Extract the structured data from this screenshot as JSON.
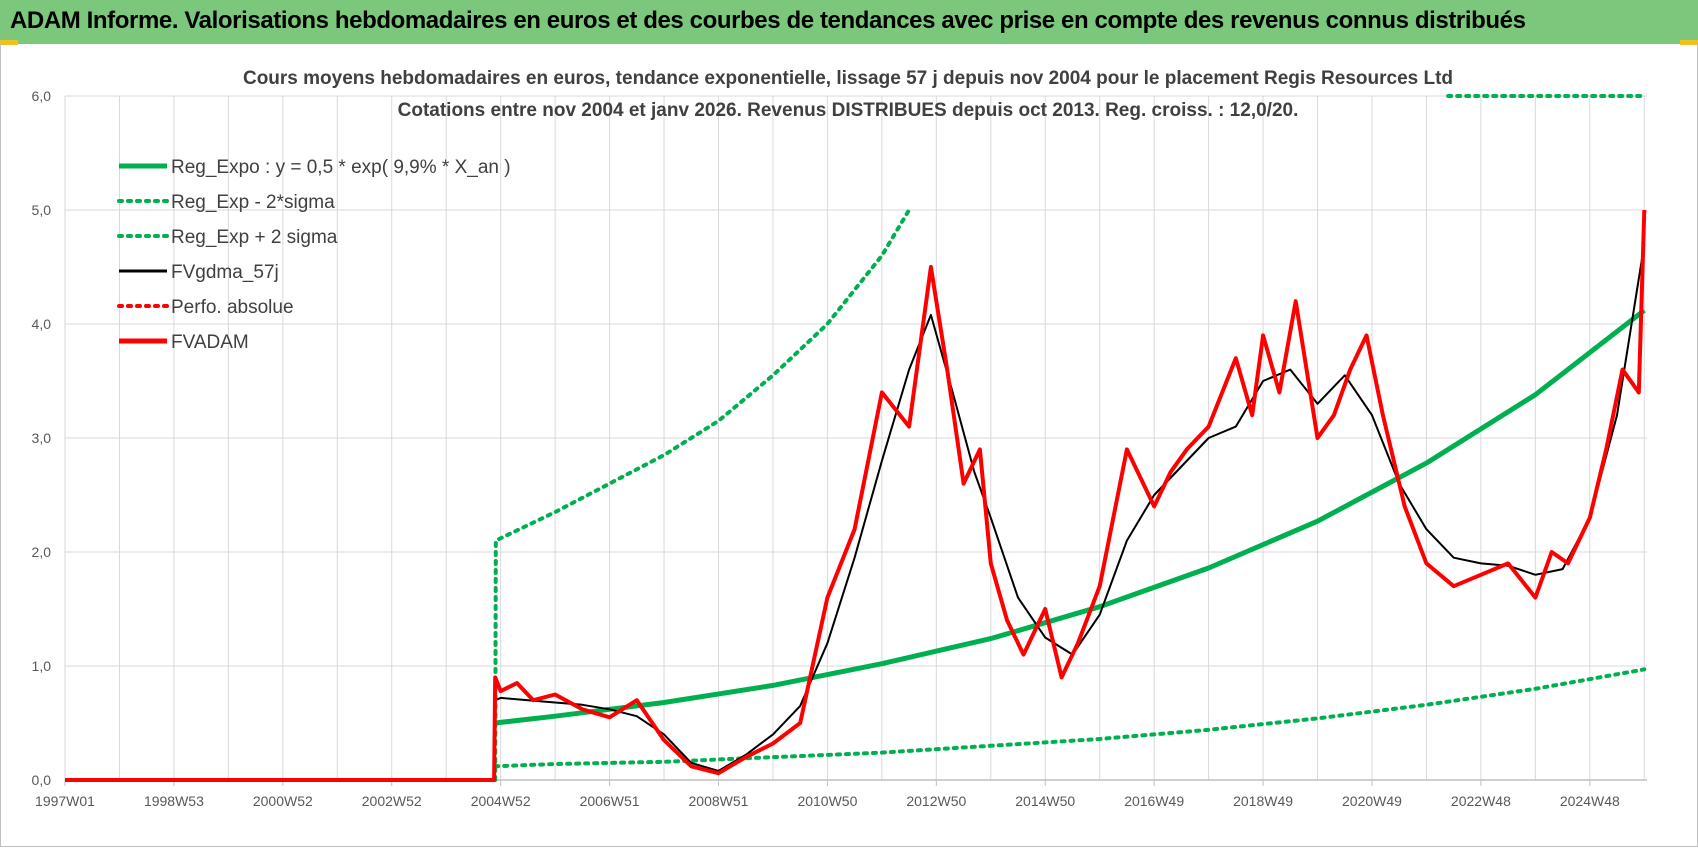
{
  "banner": {
    "title": "ADAM Informe. Valorisations hebdomadaires en euros et des courbes de tendances avec prise en compte des revenus connus distribués",
    "color": "#7bc77b"
  },
  "chart_data": {
    "type": "line",
    "title_line1": "Cours moyens hebdomadaires en euros, tendance exponentielle, lissage 57 j depuis nov 2004  pour le  placement Regis Resources Ltd",
    "title_line2": "Cotations entre nov 2004 et janv 2026. Revenus DISTRIBUES depuis oct 2013.  Reg. croiss. : 12,0/20.",
    "xlabel": "",
    "ylabel": "",
    "x_range": [
      1997.0,
      2026.05
    ],
    "ylim": [
      0,
      6
    ],
    "y_ticks": [
      "0,0",
      "1,0",
      "2,0",
      "3,0",
      "4,0",
      "5,0",
      "6,0"
    ],
    "x_ticks": [
      {
        "label": "1997W01",
        "x": 1997.0
      },
      {
        "label": "1998W53",
        "x": 1999.0
      },
      {
        "label": "2000W52",
        "x": 2001.0
      },
      {
        "label": "2002W52",
        "x": 2003.0
      },
      {
        "label": "2004W52",
        "x": 2005.0
      },
      {
        "label": "2006W51",
        "x": 2007.0
      },
      {
        "label": "2008W51",
        "x": 2009.0
      },
      {
        "label": "2010W50",
        "x": 2011.0
      },
      {
        "label": "2012W50",
        "x": 2013.0
      },
      {
        "label": "2014W50",
        "x": 2015.0
      },
      {
        "label": "2016W49",
        "x": 2017.0
      },
      {
        "label": "2018W49",
        "x": 2019.0
      },
      {
        "label": "2020W49",
        "x": 2021.0
      },
      {
        "label": "2022W48",
        "x": 2023.0
      },
      {
        "label": "2024W48",
        "x": 2025.0
      }
    ],
    "grid": true,
    "legend_position": "top-left",
    "legend": [
      {
        "label": "Reg_Expo : y = 0,5 * exp( 9,9% *  X_an )",
        "color": "#00b050",
        "style": "solid-thick"
      },
      {
        "label": "Reg_Exp - 2*sigma",
        "color": "#00b050",
        "style": "dotted"
      },
      {
        "label": "Reg_Exp + 2 sigma",
        "color": "#00b050",
        "style": "dotted"
      },
      {
        "label": "FVgdma_57j",
        "color": "#000000",
        "style": "solid"
      },
      {
        "label": "Perfo. absolue",
        "color": "#ff0000",
        "style": "dotted"
      },
      {
        "label": "FVADAM",
        "color": "#ff0000",
        "style": "solid-thick"
      }
    ],
    "series": [
      {
        "name": "Reg_Expo",
        "color": "#00b050",
        "style": "solid",
        "width": 5,
        "x": [
          2004.9,
          2006,
          2008,
          2010,
          2012,
          2014,
          2016,
          2018,
          2020,
          2022,
          2024,
          2026
        ],
        "y": [
          0.5,
          0.56,
          0.68,
          0.83,
          1.02,
          1.24,
          1.52,
          1.86,
          2.27,
          2.78,
          3.38,
          4.12
        ]
      },
      {
        "name": "Reg_Exp - 2*sigma",
        "color": "#00b050",
        "style": "dotted",
        "width": 4,
        "x": [
          2004.9,
          2006,
          2008,
          2010,
          2012,
          2014,
          2016,
          2018,
          2020,
          2022,
          2024,
          2026
        ],
        "y": [
          0.12,
          0.14,
          0.16,
          0.2,
          0.24,
          0.3,
          0.36,
          0.44,
          0.54,
          0.66,
          0.8,
          0.97
        ]
      },
      {
        "name": "Reg_Exp + 2 sigma",
        "color": "#00b050",
        "style": "dotted",
        "width": 4,
        "x": [
          2004.9,
          2004.91,
          2006,
          2008,
          2009,
          2010,
          2011,
          2012,
          2012.5
        ],
        "y": [
          0.0,
          2.1,
          2.35,
          2.85,
          3.15,
          3.55,
          4.0,
          4.6,
          5.0
        ]
      },
      {
        "name": "Reg_Exp + 2 sigma (cap)",
        "color": "#00b050",
        "style": "dotted",
        "width": 4,
        "x": [
          2022.4,
          2026.0
        ],
        "y": [
          6.0,
          6.0
        ]
      },
      {
        "name": "FVgdma_57j",
        "color": "#000000",
        "style": "solid",
        "width": 2,
        "x": [
          2004.9,
          2005.0,
          2005.5,
          2006.0,
          2006.5,
          2007.0,
          2007.5,
          2008.0,
          2008.5,
          2009.0,
          2009.5,
          2010.0,
          2010.5,
          2011.0,
          2011.5,
          2012.0,
          2012.5,
          2012.9,
          2013.3,
          2013.7,
          2014.0,
          2014.5,
          2015.0,
          2015.5,
          2016.0,
          2016.5,
          2017.0,
          2017.5,
          2018.0,
          2018.5,
          2019.0,
          2019.5,
          2020.0,
          2020.5,
          2021.0,
          2021.5,
          2022.0,
          2022.5,
          2023.0,
          2023.5,
          2024.0,
          2024.5,
          2025.0,
          2025.5,
          2026.0
        ],
        "y": [
          0.7,
          0.72,
          0.7,
          0.68,
          0.66,
          0.62,
          0.56,
          0.4,
          0.15,
          0.08,
          0.22,
          0.4,
          0.65,
          1.2,
          1.95,
          2.8,
          3.6,
          4.08,
          3.4,
          2.7,
          2.3,
          1.6,
          1.25,
          1.1,
          1.45,
          2.1,
          2.5,
          2.75,
          3.0,
          3.1,
          3.5,
          3.6,
          3.3,
          3.55,
          3.2,
          2.6,
          2.2,
          1.95,
          1.9,
          1.88,
          1.8,
          1.85,
          2.3,
          3.2,
          4.7
        ]
      },
      {
        "name": "FVADAM",
        "color": "#ff0000",
        "style": "solid",
        "width": 4,
        "x": [
          1997.0,
          2004.88,
          2004.9,
          2005.0,
          2005.3,
          2005.6,
          2006.0,
          2006.5,
          2007.0,
          2007.5,
          2008.0,
          2008.5,
          2009.0,
          2009.5,
          2010.0,
          2010.5,
          2011.0,
          2011.5,
          2012.0,
          2012.5,
          2012.9,
          2013.2,
          2013.5,
          2013.8,
          2014.0,
          2014.3,
          2014.6,
          2015.0,
          2015.3,
          2015.6,
          2016.0,
          2016.5,
          2017.0,
          2017.3,
          2017.6,
          2018.0,
          2018.5,
          2018.8,
          2019.0,
          2019.3,
          2019.6,
          2020.0,
          2020.3,
          2020.6,
          2020.9,
          2021.2,
          2021.6,
          2022.0,
          2022.5,
          2023.0,
          2023.5,
          2024.0,
          2024.3,
          2024.6,
          2025.0,
          2025.3,
          2025.6,
          2025.9,
          2026.0
        ],
        "y": [
          0.0,
          0.0,
          0.9,
          0.78,
          0.85,
          0.7,
          0.75,
          0.62,
          0.55,
          0.7,
          0.35,
          0.12,
          0.06,
          0.2,
          0.32,
          0.5,
          1.6,
          2.2,
          3.4,
          3.1,
          4.5,
          3.6,
          2.6,
          2.9,
          1.9,
          1.4,
          1.1,
          1.5,
          0.9,
          1.2,
          1.7,
          2.9,
          2.4,
          2.7,
          2.9,
          3.1,
          3.7,
          3.2,
          3.9,
          3.4,
          4.2,
          3.0,
          3.2,
          3.6,
          3.9,
          3.2,
          2.4,
          1.9,
          1.7,
          1.8,
          1.9,
          1.6,
          2.0,
          1.9,
          2.3,
          2.9,
          3.6,
          3.4,
          5.0
        ]
      }
    ]
  }
}
